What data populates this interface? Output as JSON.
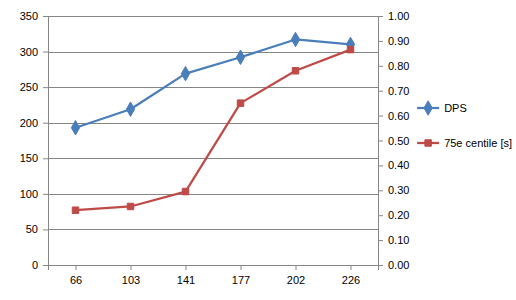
{
  "chart_data": {
    "type": "line",
    "categories": [
      "66",
      "103",
      "141",
      "177",
      "202",
      "226"
    ],
    "series": [
      {
        "name": "DPS",
        "color": "#4a7ebb",
        "marker": "diamond",
        "values": [
          193,
          219,
          269,
          292,
          317,
          310
        ]
      },
      {
        "name": "75e centile [s]",
        "color": "#be4b48",
        "marker": "square",
        "axis": "y2",
        "values": [
          0.22,
          0.235,
          0.295,
          0.65,
          0.78,
          0.865
        ]
      }
    ],
    "ylim": [
      0,
      350
    ],
    "yticks": [
      0,
      50,
      100,
      150,
      200,
      250,
      300,
      350
    ],
    "y2lim": [
      0,
      1
    ],
    "y2ticks": [
      {
        "value": 0,
        "label": "0.00"
      },
      {
        "value": 0.1,
        "label": "0.10"
      },
      {
        "value": 0.2,
        "label": "0.20"
      },
      {
        "value": 0.3,
        "label": "0.30"
      },
      {
        "value": 0.4,
        "label": "0.40"
      },
      {
        "value": 0.5,
        "label": "0.50"
      },
      {
        "value": 0.6,
        "label": "0.60"
      },
      {
        "value": 0.7,
        "label": "0.70"
      },
      {
        "value": 0.8,
        "label": "0.80"
      },
      {
        "value": 0.9,
        "label": "0.90"
      },
      {
        "value": 1,
        "label": "1.00"
      }
    ],
    "grid": true,
    "legend": "right"
  }
}
